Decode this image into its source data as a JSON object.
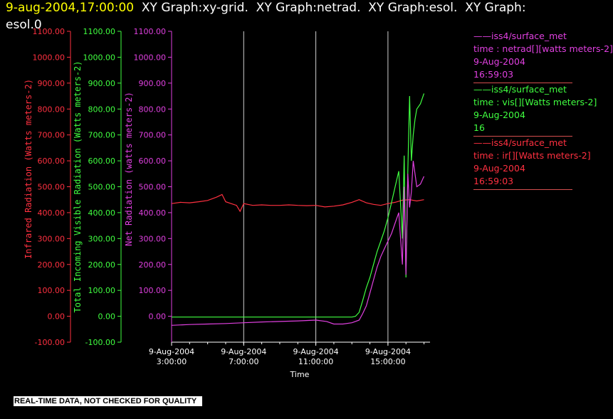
{
  "header": {
    "timestamp": "9-aug-2004,17:00:00",
    "title_rest": "  XY Graph:xy-grid.  XY Graph:netrad.  XY Graph:esol.  XY Graph:",
    "title_line2": "esol.0"
  },
  "footer": {
    "notice": "REAL-TIME DATA, NOT CHECKED FOR QUALITY"
  },
  "legend": [
    {
      "lines": [
        "——iss4/surface_met",
        "time : netrad[][watts meters-2]",
        "9-Aug-2004",
        "16:59:03"
      ],
      "color": "#e040e0"
    },
    {
      "lines": [
        "——iss4/surface_met",
        "time : vis[][Watts meters-2]",
        "9-Aug-2004",
        "16"
      ],
      "color": "#40ff40"
    },
    {
      "lines": [
        "——iss4/surface_met",
        "time : ir[][Watts meters-2]",
        "9-Aug-2004",
        "16:59:03"
      ],
      "color": "#ff3040"
    }
  ],
  "chart_data": {
    "type": "line",
    "xlabel": "Time",
    "x_ticks": [
      {
        "date": "9-Aug-2004",
        "time": "3:00:00",
        "hour": 3
      },
      {
        "date": "9-Aug-2004",
        "time": "7:00:00",
        "hour": 7
      },
      {
        "date": "9-Aug-2004",
        "time": "11:00:00",
        "hour": 11
      },
      {
        "date": "9-Aug-2004",
        "time": "15:00:00",
        "hour": 15
      }
    ],
    "xlim_hours": [
      3,
      17
    ],
    "ylim": [
      -100,
      1100
    ],
    "y_ticks": [
      "-100.00",
      "0.00",
      "100.00",
      "200.00",
      "300.00",
      "400.00",
      "500.00",
      "600.00",
      "700.00",
      "800.00",
      "900.00",
      "1000.00",
      "1100.00"
    ],
    "y_ticks_axis3": [
      "0.00",
      "100.00",
      "200.00",
      "300.00",
      "400.00",
      "500.00",
      "600.00",
      "700.00",
      "800.00",
      "900.00",
      "1000.00",
      "1100.00"
    ],
    "axes": [
      {
        "label": "Infrared Radiation (Watts meters-2)",
        "color": "#ff3040"
      },
      {
        "label": "Total Incoming Visible Radiation (Watts meters-2)",
        "color": "#40ff40"
      },
      {
        "label": "Net Radiation (watts meters-2)",
        "color": "#e040e0"
      }
    ],
    "series": [
      {
        "name": "ir",
        "color": "#ff3040",
        "points": [
          [
            3.0,
            435
          ],
          [
            3.5,
            440
          ],
          [
            4.0,
            438
          ],
          [
            4.5,
            442
          ],
          [
            5.0,
            447
          ],
          [
            5.5,
            460
          ],
          [
            5.8,
            470
          ],
          [
            6.0,
            442
          ],
          [
            6.3,
            435
          ],
          [
            6.6,
            428
          ],
          [
            6.8,
            405
          ],
          [
            7.0,
            435
          ],
          [
            7.5,
            428
          ],
          [
            8.0,
            430
          ],
          [
            8.5,
            428
          ],
          [
            9.0,
            428
          ],
          [
            9.5,
            430
          ],
          [
            10.0,
            428
          ],
          [
            10.5,
            427
          ],
          [
            11.0,
            428
          ],
          [
            11.5,
            422
          ],
          [
            12.0,
            425
          ],
          [
            12.5,
            430
          ],
          [
            13.0,
            440
          ],
          [
            13.4,
            450
          ],
          [
            13.8,
            438
          ],
          [
            14.2,
            432
          ],
          [
            14.6,
            428
          ],
          [
            15.0,
            435
          ],
          [
            15.4,
            440
          ],
          [
            15.8,
            448
          ],
          [
            16.2,
            450
          ],
          [
            16.6,
            445
          ],
          [
            17.0,
            450
          ]
        ]
      },
      {
        "name": "vis",
        "color": "#40ff40",
        "points": [
          [
            3.0,
            -3
          ],
          [
            4.0,
            -3
          ],
          [
            5.0,
            -3
          ],
          [
            6.0,
            -3
          ],
          [
            7.0,
            -3
          ],
          [
            8.0,
            -3
          ],
          [
            9.0,
            -3
          ],
          [
            10.0,
            -3
          ],
          [
            11.0,
            -3
          ],
          [
            12.0,
            -3
          ],
          [
            13.0,
            -3
          ],
          [
            13.2,
            0
          ],
          [
            13.4,
            15
          ],
          [
            13.6,
            60
          ],
          [
            13.8,
            110
          ],
          [
            14.0,
            150
          ],
          [
            14.2,
            200
          ],
          [
            14.4,
            250
          ],
          [
            14.6,
            290
          ],
          [
            14.8,
            330
          ],
          [
            15.0,
            380
          ],
          [
            15.2,
            440
          ],
          [
            15.4,
            500
          ],
          [
            15.6,
            560
          ],
          [
            15.8,
            300
          ],
          [
            15.9,
            620
          ],
          [
            16.0,
            150
          ],
          [
            16.1,
            560
          ],
          [
            16.2,
            850
          ],
          [
            16.3,
            600
          ],
          [
            16.4,
            700
          ],
          [
            16.5,
            760
          ],
          [
            16.6,
            800
          ],
          [
            16.8,
            820
          ],
          [
            17.0,
            860
          ]
        ]
      },
      {
        "name": "netrad",
        "color": "#e040e0",
        "points": [
          [
            3.0,
            -35
          ],
          [
            4.0,
            -32
          ],
          [
            5.0,
            -30
          ],
          [
            6.0,
            -28
          ],
          [
            7.0,
            -25
          ],
          [
            8.0,
            -22
          ],
          [
            9.0,
            -20
          ],
          [
            10.0,
            -18
          ],
          [
            11.0,
            -15
          ],
          [
            11.6,
            -20
          ],
          [
            12.0,
            -30
          ],
          [
            12.5,
            -30
          ],
          [
            13.0,
            -25
          ],
          [
            13.4,
            -15
          ],
          [
            13.6,
            10
          ],
          [
            13.8,
            40
          ],
          [
            14.0,
            90
          ],
          [
            14.2,
            140
          ],
          [
            14.4,
            190
          ],
          [
            14.6,
            230
          ],
          [
            14.8,
            260
          ],
          [
            15.0,
            290
          ],
          [
            15.2,
            320
          ],
          [
            15.4,
            360
          ],
          [
            15.6,
            400
          ],
          [
            15.8,
            200
          ],
          [
            15.9,
            500
          ],
          [
            16.0,
            160
          ],
          [
            16.1,
            550
          ],
          [
            16.2,
            420
          ],
          [
            16.3,
            480
          ],
          [
            16.4,
            600
          ],
          [
            16.6,
            500
          ],
          [
            16.8,
            510
          ],
          [
            17.0,
            540
          ]
        ]
      }
    ]
  }
}
